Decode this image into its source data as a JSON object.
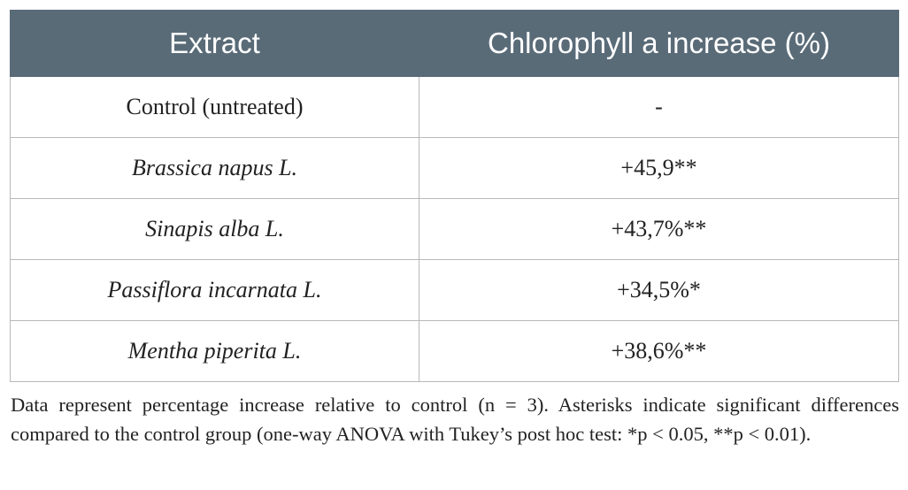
{
  "table": {
    "headers": [
      "Extract",
      "Chlorophyll a increase (%)"
    ],
    "rows": [
      {
        "extract": "Control (untreated)",
        "italic": false,
        "increase": "-"
      },
      {
        "extract": "Brassica napus L.",
        "italic": true,
        "increase": "+45,9**"
      },
      {
        "extract": "Sinapis alba L.",
        "italic": true,
        "increase": "+43,7%**"
      },
      {
        "extract": "Passiflora incarnata L.",
        "italic": true,
        "increase": "+34,5%*"
      },
      {
        "extract": "Mentha piperita L.",
        "italic": true,
        "increase": "+38,6%**"
      }
    ]
  },
  "footnote": "Data represent percentage increase relative to control (n = 3). Asterisks indicate significant differences compared to the control group (one-way ANOVA with Tukey’s post hoc test: *p < 0.05, **p < 0.01).",
  "colors": {
    "header_background": "#5a6b78",
    "header_text": "#ffffff",
    "border": "#b9b9b9",
    "body_text": "#222222"
  }
}
